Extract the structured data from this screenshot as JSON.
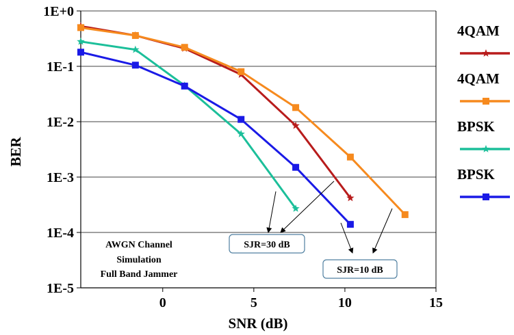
{
  "chart_data": {
    "type": "line",
    "xlabel": "SNR (dB)",
    "ylabel": "BER",
    "scale_y": "log",
    "xlim": [
      -4.5,
      15
    ],
    "ylim": [
      1e-05,
      1
    ],
    "x_ticks": [
      {
        "value": 0,
        "label": "0"
      },
      {
        "value": 5,
        "label": "5"
      },
      {
        "value": 10,
        "label": "10"
      },
      {
        "value": 15,
        "label": "15"
      }
    ],
    "y_ticks": [
      {
        "value": 1,
        "label": "1E+0"
      },
      {
        "value": 0.1,
        "label": "1E-1"
      },
      {
        "value": 0.01,
        "label": "1E-2"
      },
      {
        "value": 0.001,
        "label": "1E-3"
      },
      {
        "value": 0.0001,
        "label": "1E-4"
      },
      {
        "value": 1e-05,
        "label": "1E-5"
      }
    ],
    "grid": "horizontal",
    "legend_position": "right",
    "series": [
      {
        "name": "4QAM",
        "color": "#b81c1c",
        "marker": "star",
        "x": [
          -4.5,
          -1.5,
          1.2,
          4.3,
          7.3,
          10.3
        ],
        "y": [
          0.53,
          0.36,
          0.21,
          0.071,
          0.0085,
          0.00042
        ]
      },
      {
        "name": "4QAM",
        "color": "#f68a1e",
        "marker": "square",
        "x": [
          -4.5,
          -1.5,
          1.2,
          4.3,
          7.3,
          10.3,
          13.3
        ],
        "y": [
          0.5,
          0.36,
          0.22,
          0.08,
          0.018,
          0.0023,
          0.00021
        ]
      },
      {
        "name": "BPSK",
        "color": "#1cbf9a",
        "marker": "star",
        "x": [
          -4.5,
          -1.5,
          1.2,
          4.3,
          7.3
        ],
        "y": [
          0.28,
          0.2,
          0.045,
          0.006,
          0.00027
        ]
      },
      {
        "name": "BPSK",
        "color": "#1a1ae6",
        "marker": "square",
        "x": [
          -4.5,
          -1.5,
          1.2,
          4.3,
          7.3,
          10.3
        ],
        "y": [
          0.18,
          0.105,
          0.044,
          0.011,
          0.0015,
          0.00014
        ]
      }
    ],
    "annotations": [
      {
        "text": "AWGN Channel"
      },
      {
        "text": "Simulation"
      },
      {
        "text": "Full Band Jammer"
      }
    ],
    "callouts": [
      {
        "text": "SJR=30 dB"
      },
      {
        "text": "SJR=10 dB"
      }
    ]
  }
}
